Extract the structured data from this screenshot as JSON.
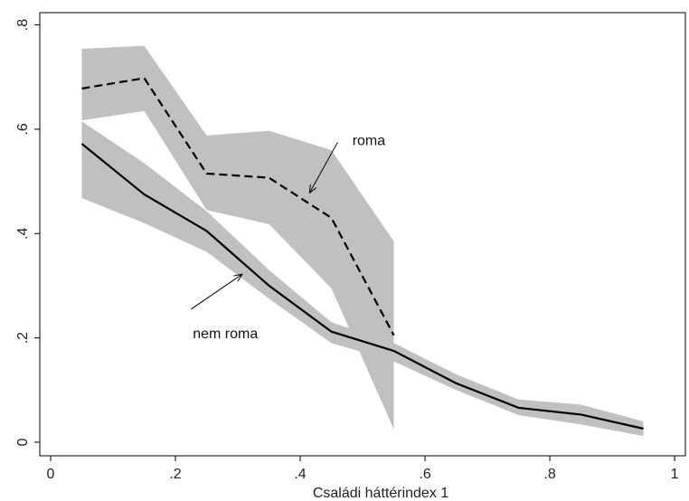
{
  "chart_data": {
    "type": "line",
    "title": "",
    "xlabel": "Családi háttérindex 1",
    "ylabel": "",
    "xlim": [
      0,
      1
    ],
    "ylim": [
      0,
      0.8
    ],
    "xticks": [
      {
        "value": 0,
        "label": "0"
      },
      {
        "value": 0.2,
        "label": ".2"
      },
      {
        "value": 0.4,
        "label": ".4"
      },
      {
        "value": 0.6,
        "label": ".6"
      },
      {
        "value": 0.8,
        "label": ".8"
      },
      {
        "value": 1,
        "label": "1"
      }
    ],
    "yticks": [
      {
        "value": 0,
        "label": "0"
      },
      {
        "value": 0.2,
        "label": ".2"
      },
      {
        "value": 0.4,
        "label": ".4"
      },
      {
        "value": 0.6,
        "label": ".6"
      },
      {
        "value": 0.8,
        "label": ".8"
      }
    ],
    "grid": false,
    "legend": "none",
    "band_color": "#c0c0c0",
    "line_color": "#000000",
    "series": [
      {
        "name": "roma",
        "style": "dashed",
        "x": [
          0.05,
          0.15,
          0.25,
          0.35,
          0.45,
          0.55
        ],
        "y": [
          0.678,
          0.698,
          0.515,
          0.507,
          0.43,
          0.205
        ],
        "ci_upper": [
          0.754,
          0.76,
          0.588,
          0.597,
          0.56,
          0.385
        ],
        "ci_lower": [
          0.617,
          0.635,
          0.445,
          0.418,
          0.295,
          0.025
        ]
      },
      {
        "name": "nem roma",
        "style": "solid",
        "x": [
          0.05,
          0.15,
          0.25,
          0.35,
          0.45,
          0.55,
          0.65,
          0.75,
          0.85,
          0.95
        ],
        "y": [
          0.572,
          0.475,
          0.405,
          0.3,
          0.212,
          0.175,
          0.113,
          0.066,
          0.053,
          0.026
        ],
        "ci_upper": [
          0.615,
          0.535,
          0.443,
          0.33,
          0.23,
          0.19,
          0.13,
          0.082,
          0.072,
          0.04
        ],
        "ci_lower": [
          0.468,
          0.42,
          0.365,
          0.275,
          0.19,
          0.155,
          0.1,
          0.052,
          0.034,
          0.012
        ]
      }
    ],
    "annotations": [
      {
        "text": "roma",
        "text_at": [
          0.51,
          0.58
        ],
        "arrow_from": [
          0.46,
          0.575
        ],
        "arrow_to": [
          0.415,
          0.478
        ]
      },
      {
        "text": "nem roma",
        "text_at": [
          0.28,
          0.21
        ],
        "arrow_from": [
          0.225,
          0.255
        ],
        "arrow_to": [
          0.307,
          0.322
        ]
      }
    ]
  }
}
